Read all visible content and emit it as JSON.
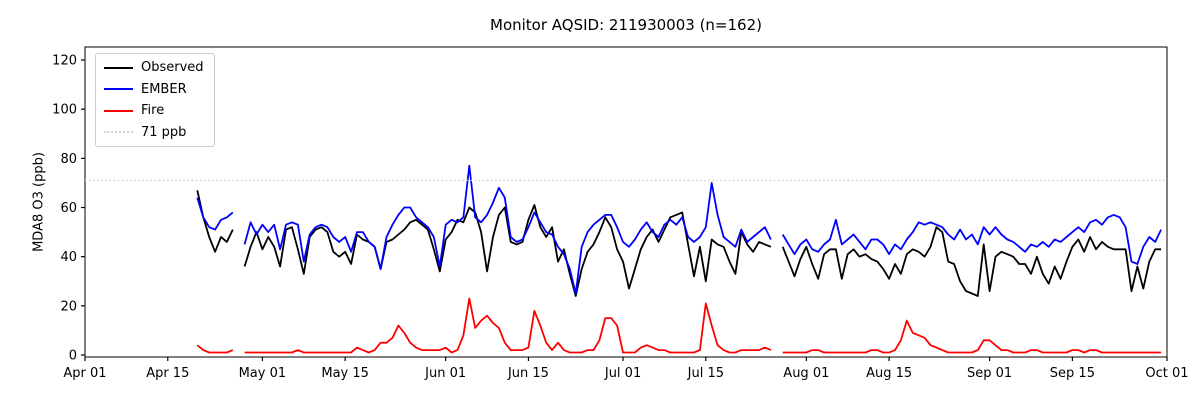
{
  "figure": {
    "title": "Monitor AQSID: 211930003 (n=162)"
  },
  "axes": {
    "ylabel": "MDA8 O3 (ppb)",
    "yticks": [
      0,
      20,
      40,
      60,
      80,
      100,
      120
    ],
    "xtick_days": [
      0,
      14,
      30,
      44,
      61,
      75,
      91,
      105,
      122,
      136,
      153,
      167,
      183
    ],
    "xtick_labels": [
      "Apr 01",
      "Apr 15",
      "May 01",
      "May 15",
      "Jun 01",
      "Jun 15",
      "Jul 01",
      "Jul 15",
      "Aug 01",
      "Aug 15",
      "Sep 01",
      "Sep 15",
      "Oct 01"
    ],
    "x_total_days": 183
  },
  "legend": {
    "items": [
      {
        "label": "Observed",
        "color": "#000000",
        "style": "solid"
      },
      {
        "label": "EMBER",
        "color": "#0000ff",
        "style": "solid"
      },
      {
        "label": "Fire",
        "color": "#ff0000",
        "style": "solid"
      },
      {
        "label": "71 ppb",
        "color": "#d3d3d3",
        "style": "dotted"
      }
    ]
  },
  "chart_data": {
    "type": "line",
    "title": "Monitor AQSID: 211930003 (n=162)",
    "xlabel": "",
    "ylabel": "MDA8 O3 (ppb)",
    "ylim": [
      0,
      125
    ],
    "grid": false,
    "legend_position": "upper left",
    "x_unit": "day",
    "x_start_date": "Apr 20",
    "x_end_date": "Sep 30",
    "x_start_day_offset_from_apr01": 19,
    "missing_dates": [
      "Apr 27",
      "Jul 27"
    ],
    "n_points": 162,
    "reference_line": {
      "value": 71,
      "label": "71 ppb",
      "color": "#d3d3d3",
      "style": "dotted"
    },
    "series": [
      {
        "name": "Observed",
        "color": "#000000",
        "values": [
          67,
          56,
          48,
          42,
          48,
          46,
          51,
          null,
          36,
          44,
          50,
          43,
          48,
          44,
          36,
          51,
          52,
          43,
          33,
          48,
          51,
          52,
          50,
          42,
          40,
          42,
          37,
          49,
          47,
          46,
          44,
          35,
          46,
          47,
          49,
          51,
          54,
          55,
          53,
          51,
          43,
          34,
          47,
          50,
          55,
          54,
          60,
          58,
          50,
          34,
          48,
          57,
          60,
          46,
          45,
          46,
          55,
          61,
          52,
          48,
          52,
          38,
          43,
          33,
          24,
          35,
          42,
          45,
          50,
          56,
          52,
          43,
          38,
          27,
          35,
          43,
          48,
          51,
          46,
          51,
          56,
          57,
          58,
          45,
          32,
          44,
          30,
          47,
          45,
          44,
          38,
          33,
          50,
          45,
          42,
          46,
          45,
          44,
          null,
          44,
          38,
          32,
          39,
          44,
          37,
          31,
          41,
          43,
          43,
          31,
          41,
          43,
          40,
          41,
          39,
          38,
          35,
          31,
          37,
          33,
          41,
          43,
          42,
          40,
          44,
          52,
          50,
          38,
          37,
          30,
          26,
          25,
          24,
          45,
          26,
          40,
          42,
          41,
          40,
          37,
          37,
          33,
          40,
          33,
          29,
          36,
          31,
          38,
          44,
          47,
          42,
          48,
          43,
          46,
          44,
          43,
          43,
          43,
          26,
          36,
          27,
          38,
          43,
          43
        ]
      },
      {
        "name": "EMBER",
        "color": "#0000ff",
        "values": [
          64,
          56,
          52,
          51,
          55,
          56,
          58,
          null,
          45,
          54,
          49,
          53,
          50,
          53,
          43,
          53,
          54,
          53,
          38,
          49,
          52,
          53,
          52,
          48,
          46,
          48,
          42,
          50,
          50,
          46,
          44,
          35,
          48,
          53,
          57,
          60,
          60,
          56,
          54,
          52,
          48,
          36,
          53,
          55,
          54,
          56,
          77,
          56,
          54,
          57,
          62,
          68,
          64,
          48,
          46,
          47,
          52,
          58,
          54,
          50,
          49,
          44,
          41,
          35,
          25,
          44,
          50,
          53,
          55,
          57,
          57,
          52,
          46,
          44,
          47,
          51,
          54,
          50,
          48,
          53,
          55,
          53,
          56,
          48,
          46,
          48,
          52,
          70,
          57,
          48,
          46,
          44,
          51,
          46,
          48,
          50,
          52,
          47,
          null,
          49,
          45,
          41,
          45,
          47,
          43,
          42,
          45,
          47,
          55,
          45,
          47,
          49,
          46,
          43,
          47,
          47,
          45,
          41,
          45,
          43,
          47,
          50,
          54,
          53,
          54,
          53,
          52,
          49,
          47,
          51,
          47,
          49,
          45,
          52,
          49,
          52,
          49,
          47,
          46,
          44,
          42,
          45,
          44,
          46,
          44,
          47,
          46,
          48,
          50,
          52,
          50,
          54,
          55,
          53,
          56,
          57,
          56,
          52,
          38,
          37,
          44,
          48,
          46,
          51
        ]
      },
      {
        "name": "Fire",
        "color": "#ff0000",
        "values": [
          4,
          2,
          1,
          1,
          1,
          1,
          2,
          null,
          1,
          1,
          1,
          1,
          1,
          1,
          1,
          1,
          1,
          2,
          1,
          1,
          1,
          1,
          1,
          1,
          1,
          1,
          1,
          3,
          2,
          1,
          2,
          5,
          5,
          7,
          12,
          9,
          5,
          3,
          2,
          2,
          2,
          2,
          3,
          1,
          2,
          8,
          23,
          11,
          14,
          16,
          13,
          11,
          5,
          2,
          2,
          2,
          3,
          18,
          12,
          5,
          2,
          5,
          2,
          1,
          1,
          1,
          2,
          2,
          6,
          15,
          15,
          12,
          1,
          1,
          1,
          3,
          4,
          3,
          2,
          2,
          1,
          1,
          1,
          1,
          1,
          2,
          21,
          12,
          4,
          2,
          1,
          1,
          2,
          2,
          2,
          2,
          3,
          2,
          null,
          1,
          1,
          1,
          1,
          1,
          2,
          2,
          1,
          1,
          1,
          1,
          1,
          1,
          1,
          1,
          2,
          2,
          1,
          1,
          2,
          6,
          14,
          9,
          8,
          7,
          4,
          3,
          2,
          1,
          1,
          1,
          1,
          1,
          2,
          6,
          6,
          4,
          2,
          2,
          1,
          1,
          1,
          2,
          2,
          1,
          1,
          1,
          1,
          1,
          2,
          2,
          1,
          2,
          2,
          1,
          1,
          1,
          1,
          1,
          1,
          1,
          1,
          1,
          1,
          1
        ]
      }
    ]
  }
}
